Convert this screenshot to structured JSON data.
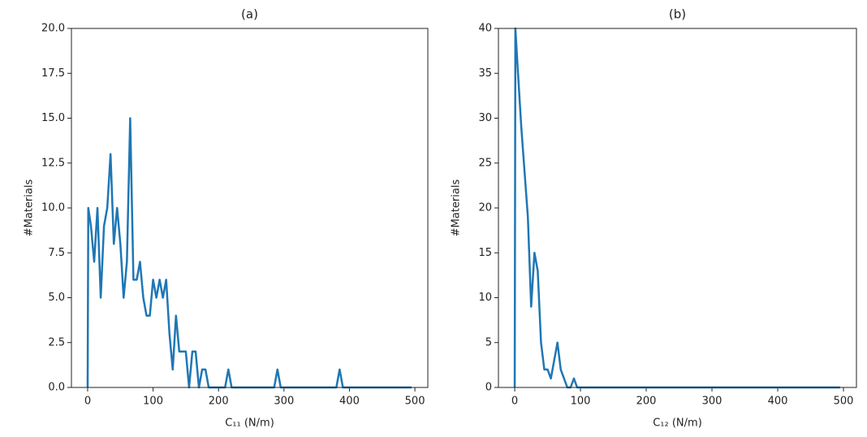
{
  "chart_data": [
    {
      "type": "line",
      "title": "(a)",
      "xlabel": "C₁₁ (N/m)",
      "ylabel": "#Materials",
      "xlim": [
        -24.75,
        519.75
      ],
      "xticks": [
        0,
        100,
        200,
        300,
        400,
        500
      ],
      "ylim": [
        0,
        20
      ],
      "yticks": [
        {
          "value": 0,
          "label": "0.0"
        },
        {
          "value": 2.5,
          "label": "2.5"
        },
        {
          "value": 5,
          "label": "5.0"
        },
        {
          "value": 7.5,
          "label": "7.5"
        },
        {
          "value": 10,
          "label": "10.0"
        },
        {
          "value": 12.5,
          "label": "12.5"
        },
        {
          "value": 15,
          "label": "15.0"
        },
        {
          "value": 17.5,
          "label": "17.5"
        },
        {
          "value": 20,
          "label": "20.0"
        }
      ],
      "color": "#1f77b4",
      "x": [
        0,
        1,
        5,
        10,
        15,
        20,
        25,
        30,
        35,
        40,
        45,
        50,
        55,
        60,
        65,
        70,
        75,
        80,
        85,
        90,
        95,
        100,
        105,
        110,
        115,
        120,
        125,
        130,
        135,
        140,
        145,
        150,
        155,
        160,
        165,
        170,
        175,
        180,
        185,
        210,
        215,
        220,
        285,
        290,
        295,
        380,
        385,
        390,
        495
      ],
      "values": [
        0,
        10,
        9,
        7,
        10,
        5,
        9,
        10,
        13,
        8,
        10,
        8,
        5,
        7,
        15,
        6,
        6,
        7,
        5,
        4,
        4,
        6,
        5,
        6,
        5,
        6,
        3,
        1,
        4,
        2,
        2,
        2,
        0,
        2,
        2,
        0,
        1,
        1,
        0,
        0,
        1,
        0,
        0,
        1,
        0,
        0,
        1,
        0,
        0
      ]
    },
    {
      "type": "line",
      "title": "(b)",
      "xlabel": "C₁₂ (N/m)",
      "ylabel": "#Materials",
      "xlim": [
        -24.75,
        519.75
      ],
      "xticks": [
        0,
        100,
        200,
        300,
        400,
        500
      ],
      "ylim": [
        0,
        40
      ],
      "yticks": [
        0,
        5,
        10,
        15,
        20,
        25,
        30,
        35,
        40
      ],
      "color": "#1f77b4",
      "x": [
        0,
        1,
        5,
        10,
        15,
        20,
        25,
        30,
        35,
        40,
        45,
        50,
        55,
        60,
        65,
        70,
        75,
        80,
        85,
        90,
        95,
        495
      ],
      "values": [
        0,
        40,
        35,
        29,
        24,
        19,
        9,
        15,
        13,
        5,
        2,
        2,
        1,
        3,
        5,
        2,
        1,
        0,
        0,
        1,
        0,
        0
      ]
    }
  ]
}
